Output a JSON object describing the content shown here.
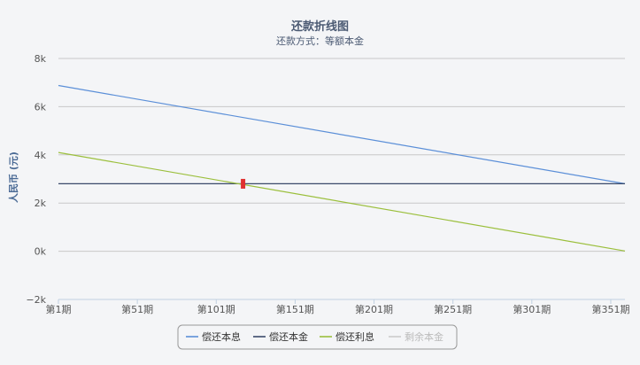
{
  "chart_data": {
    "type": "line",
    "title": "还款折线图",
    "subtitle": "还款方式：等额本金",
    "ylabel": "人民币 (元)",
    "ylim": [
      -2000,
      8000
    ],
    "yticks": [
      -2000,
      0,
      2000,
      4000,
      6000,
      8000
    ],
    "ytick_labels": [
      "−2k",
      "0k",
      "2k",
      "4k",
      "6k",
      "8k"
    ],
    "x_range": [
      1,
      360
    ],
    "xticks": [
      1,
      51,
      101,
      151,
      201,
      251,
      301,
      351
    ],
    "xtick_labels": [
      "第1期",
      "第51期",
      "第101期",
      "第151期",
      "第201期",
      "第251期",
      "第301期",
      "第351期"
    ],
    "grid": true,
    "legend_position": "bottom-center",
    "series": [
      {
        "name": "偿还本息",
        "color": "#5b8fd8",
        "x": [
          1,
          360
        ],
        "values": [
          6880,
          2800
        ],
        "visible": true
      },
      {
        "name": "偿还本金",
        "color": "#3a4a6b",
        "x": [
          1,
          360
        ],
        "values": [
          2800,
          2800
        ],
        "visible": true
      },
      {
        "name": "偿还利息",
        "color": "#9bbf3c",
        "x": [
          1,
          360
        ],
        "values": [
          4100,
          10
        ],
        "visible": true
      },
      {
        "name": "剩余本金",
        "color": "#cccccc",
        "x": [],
        "values": [],
        "visible": false
      }
    ],
    "marker": {
      "x": 118,
      "y": 2800,
      "color": "#e03030"
    }
  }
}
